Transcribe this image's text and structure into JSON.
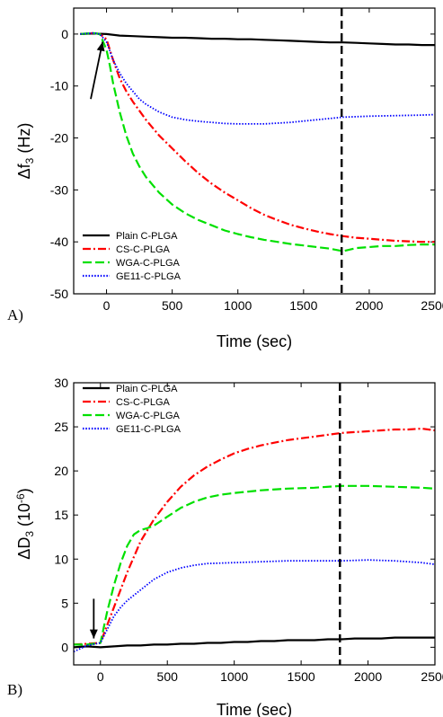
{
  "chart_data": [
    {
      "panel": "A)",
      "type": "line",
      "xlabel": "Time (sec)",
      "ylabel": "Δf",
      "ylabel_sub": "3",
      "ylabel_unit": " (Hz)",
      "xlim": [
        -250,
        2500
      ],
      "ylim": [
        -50,
        5
      ],
      "x_ticks": [
        0,
        500,
        1000,
        1500,
        2000,
        2500
      ],
      "y_ticks": [
        0,
        -10,
        -20,
        -30,
        -40,
        -50
      ],
      "legend_placement": "bottom-left",
      "vertical_dashed_line_x": 1790,
      "arrow": {
        "from": [
          -120,
          -12.5
        ],
        "to": [
          -30,
          -1.5
        ]
      },
      "series": [
        {
          "name": "Plain C-PLGA",
          "color": "#000000",
          "style": "solid",
          "x": [
            -200,
            -100,
            0,
            100,
            200,
            300,
            400,
            500,
            600,
            700,
            800,
            900,
            1000,
            1100,
            1200,
            1300,
            1400,
            1500,
            1600,
            1700,
            1800,
            1900,
            2000,
            2100,
            2200,
            2300,
            2400,
            2500
          ],
          "y": [
            0,
            0.1,
            0,
            -0.3,
            -0.4,
            -0.5,
            -0.6,
            -0.7,
            -0.7,
            -0.8,
            -0.9,
            -0.9,
            -1.0,
            -1.0,
            -1.1,
            -1.2,
            -1.3,
            -1.4,
            -1.5,
            -1.6,
            -1.6,
            -1.7,
            -1.8,
            -1.9,
            -2.0,
            -2.0,
            -2.1,
            -2.1
          ]
        },
        {
          "name": "CS-C-PLGA",
          "color": "#ff0000",
          "style": "dashdot",
          "x": [
            -200,
            -100,
            -50,
            0,
            50,
            100,
            150,
            200,
            300,
            400,
            500,
            600,
            700,
            800,
            900,
            1000,
            1100,
            1200,
            1300,
            1400,
            1500,
            1600,
            1700,
            1800,
            1900,
            2000,
            2100,
            2200,
            2300,
            2400,
            2500
          ],
          "y": [
            0,
            0.2,
            0,
            -1.0,
            -5.0,
            -8.5,
            -11.0,
            -13.0,
            -16.5,
            -19.5,
            -22.0,
            -24.5,
            -26.8,
            -28.8,
            -30.5,
            -32.0,
            -33.5,
            -34.8,
            -35.8,
            -36.7,
            -37.4,
            -38.0,
            -38.5,
            -38.9,
            -39.2,
            -39.4,
            -39.6,
            -39.8,
            -39.9,
            -40.0,
            -40.0
          ]
        },
        {
          "name": "WGA-C-PLGA",
          "color": "#00e000",
          "style": "dashed",
          "x": [
            -200,
            -100,
            -50,
            0,
            25,
            50,
            100,
            150,
            200,
            250,
            300,
            400,
            500,
            600,
            700,
            800,
            900,
            1000,
            1100,
            1200,
            1300,
            1400,
            1500,
            1600,
            1700,
            1800,
            1900,
            2000,
            2100,
            2200,
            2300,
            2400,
            2500
          ],
          "y": [
            0,
            0.2,
            0,
            -3.0,
            -6.0,
            -9.5,
            -15.0,
            -19.5,
            -23.0,
            -25.5,
            -27.5,
            -30.5,
            -32.8,
            -34.5,
            -35.8,
            -36.8,
            -37.8,
            -38.5,
            -39.1,
            -39.6,
            -40.0,
            -40.4,
            -40.7,
            -41.0,
            -41.3,
            -41.8,
            -41.2,
            -41.0,
            -40.8,
            -40.8,
            -40.6,
            -40.5,
            -40.5
          ]
        },
        {
          "name": "GE11-C-PLGA",
          "color": "#0000ff",
          "style": "dotted",
          "x": [
            -200,
            -100,
            -50,
            0,
            50,
            100,
            150,
            200,
            250,
            300,
            400,
            500,
            600,
            700,
            800,
            900,
            1000,
            1200,
            1400,
            1600,
            1800,
            2000,
            2200,
            2400,
            2500
          ],
          "y": [
            0,
            0.2,
            0,
            -1.5,
            -5.0,
            -7.5,
            -9.5,
            -11.0,
            -12.5,
            -13.5,
            -15.0,
            -16.0,
            -16.5,
            -16.8,
            -17.0,
            -17.2,
            -17.3,
            -17.3,
            -17.0,
            -16.5,
            -16.0,
            -15.8,
            -15.7,
            -15.6,
            -15.5
          ]
        }
      ]
    },
    {
      "panel": "B)",
      "type": "line",
      "xlabel": "Time (sec)",
      "ylabel": "ΔD",
      "ylabel_sub": "3",
      "ylabel_unit": " (10",
      "ylabel_sup": "-6",
      "ylabel_end": ")",
      "xlim": [
        -200,
        2500
      ],
      "ylim": [
        -2,
        30
      ],
      "x_ticks": [
        0,
        500,
        1000,
        1500,
        2000,
        2500
      ],
      "y_ticks": [
        0,
        5,
        10,
        15,
        20,
        25,
        30
      ],
      "legend_placement": "top-left",
      "vertical_dashed_line_x": 1790,
      "arrow": {
        "from": [
          -50,
          5.5
        ],
        "to": [
          -50,
          1.0
        ]
      },
      "series": [
        {
          "name": "Plain C-PLGA",
          "color": "#000000",
          "style": "solid",
          "x": [
            -200,
            -100,
            0,
            100,
            200,
            300,
            400,
            500,
            600,
            700,
            800,
            900,
            1000,
            1100,
            1200,
            1300,
            1400,
            1500,
            1600,
            1700,
            1800,
            1900,
            2000,
            2100,
            2200,
            2300,
            2400,
            2500
          ],
          "y": [
            0,
            0.1,
            0,
            0.1,
            0.2,
            0.2,
            0.3,
            0.3,
            0.4,
            0.4,
            0.5,
            0.5,
            0.6,
            0.6,
            0.7,
            0.7,
            0.8,
            0.8,
            0.8,
            0.9,
            0.9,
            1.0,
            1.0,
            1.0,
            1.1,
            1.1,
            1.1,
            1.1
          ]
        },
        {
          "name": "CS-C-PLGA",
          "color": "#ff0000",
          "style": "dashdot",
          "x": [
            -200,
            -100,
            0,
            50,
            100,
            150,
            200,
            300,
            400,
            500,
            600,
            700,
            800,
            900,
            1000,
            1100,
            1200,
            1300,
            1400,
            1500,
            1600,
            1700,
            1800,
            1900,
            2000,
            2100,
            2200,
            2300,
            2400,
            2500
          ],
          "y": [
            0.3,
            0.4,
            0.5,
            2.5,
            4.5,
            6.5,
            8.5,
            12.0,
            14.5,
            16.5,
            18.2,
            19.5,
            20.5,
            21.3,
            22.0,
            22.5,
            22.9,
            23.2,
            23.5,
            23.7,
            23.9,
            24.1,
            24.3,
            24.4,
            24.5,
            24.6,
            24.7,
            24.7,
            24.8,
            24.6
          ]
        },
        {
          "name": "WGA-C-PLGA",
          "color": "#00e000",
          "style": "dashed",
          "x": [
            -200,
            -100,
            0,
            50,
            100,
            150,
            200,
            250,
            300,
            350,
            400,
            500,
            600,
            700,
            800,
            900,
            1000,
            1200,
            1400,
            1600,
            1800,
            2000,
            2200,
            2400,
            2500
          ],
          "y": [
            0.3,
            0.3,
            0.5,
            4.0,
            7.0,
            9.5,
            11.5,
            12.8,
            13.3,
            13.5,
            13.8,
            14.8,
            15.8,
            16.5,
            17.0,
            17.3,
            17.5,
            17.8,
            18.0,
            18.1,
            18.3,
            18.3,
            18.2,
            18.1,
            18.0
          ]
        },
        {
          "name": "GE11-C-PLGA",
          "color": "#0000ff",
          "style": "dotted",
          "x": [
            -200,
            -100,
            0,
            50,
            100,
            150,
            200,
            300,
            400,
            500,
            600,
            700,
            800,
            1000,
            1200,
            1400,
            1600,
            1800,
            2000,
            2200,
            2400,
            2500
          ],
          "y": [
            -0.5,
            0.2,
            0.5,
            2.0,
            3.5,
            4.5,
            5.3,
            6.5,
            7.7,
            8.5,
            9.0,
            9.3,
            9.5,
            9.6,
            9.7,
            9.8,
            9.8,
            9.8,
            9.9,
            9.8,
            9.6,
            9.4
          ]
        }
      ]
    }
  ]
}
